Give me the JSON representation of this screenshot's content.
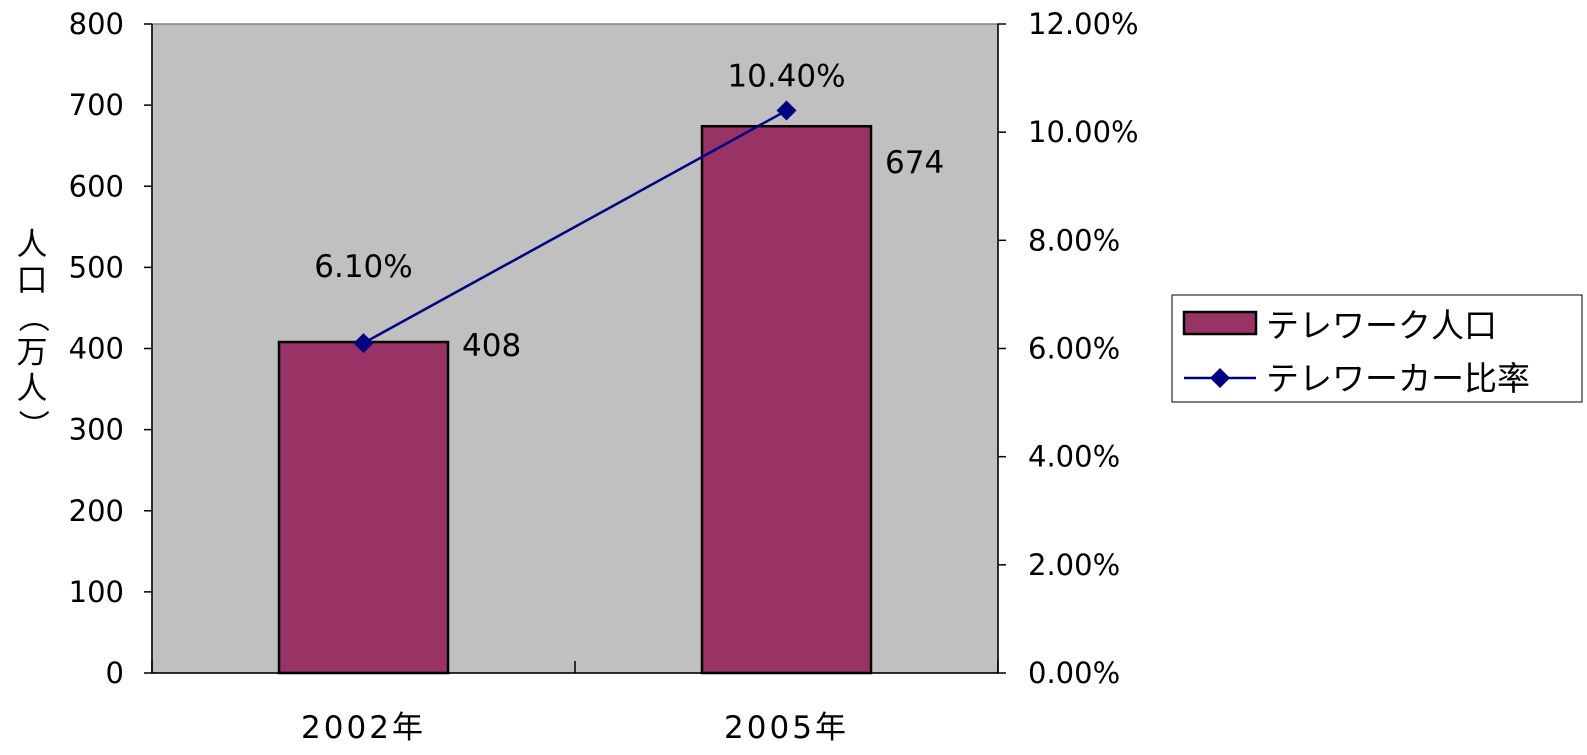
{
  "chart_data": {
    "type": "bar",
    "categories": [
      "2002年",
      "2005年"
    ],
    "series": [
      {
        "name": "テレワーク人口",
        "type": "bar",
        "axis": "left",
        "values": [
          408,
          674
        ],
        "value_labels": [
          "408",
          "674"
        ],
        "color": "#993366"
      },
      {
        "name": "テレワーカー比率",
        "type": "line",
        "axis": "right",
        "values": [
          6.1,
          10.4
        ],
        "value_labels": [
          "6.10%",
          "10.40%"
        ],
        "color": "#000080"
      }
    ],
    "ylabel": "人口（万人）",
    "ylabel_chars": [
      "人",
      "口",
      "（",
      "万",
      "人",
      "）"
    ],
    "ylim": [
      0,
      800
    ],
    "yticks": [
      0,
      100,
      200,
      300,
      400,
      500,
      600,
      700,
      800
    ],
    "ytick_labels": [
      "0",
      "100",
      "200",
      "300",
      "400",
      "500",
      "600",
      "700",
      "800"
    ],
    "y2lim": [
      0,
      12
    ],
    "y2ticks": [
      0,
      2,
      4,
      6,
      8,
      10,
      12
    ],
    "y2tick_labels": [
      "0.00%",
      "2.00%",
      "4.00%",
      "6.00%",
      "8.00%",
      "10.00%",
      "12.00%"
    ],
    "plot_background": "#c0c0c0",
    "grid": false,
    "legend_position": "right"
  }
}
